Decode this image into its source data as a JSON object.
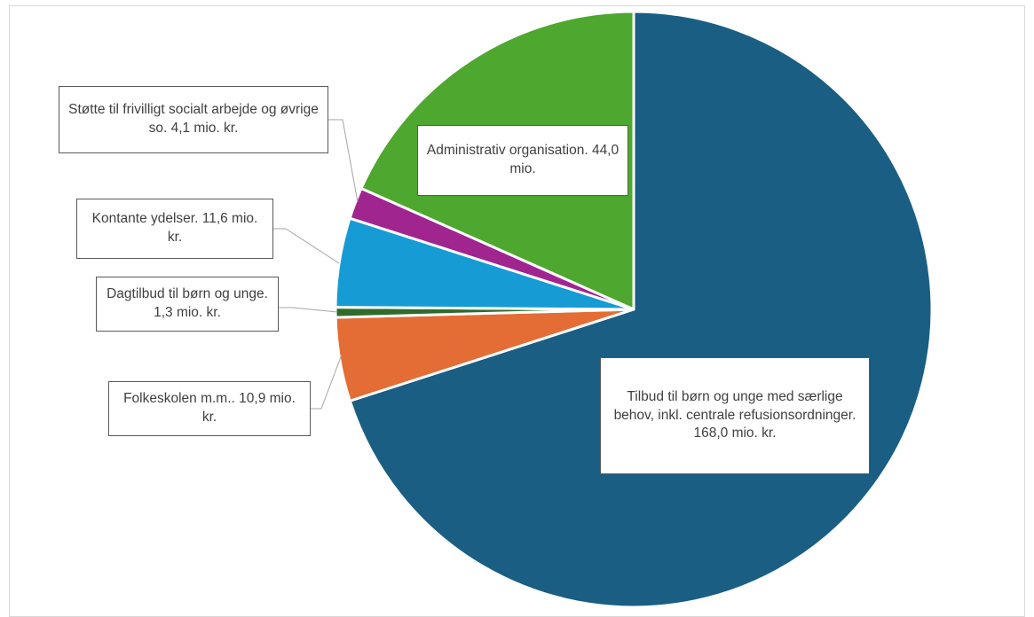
{
  "chart_data": {
    "type": "pie",
    "slices": [
      {
        "label": "Tilbud til børn og unge med særlige behov, inkl. centrale refusionsordninger. 168,0 mio. kr.",
        "value": 168.0,
        "color": "#1a5e83"
      },
      {
        "label": "Folkeskolen m.m.. 10,9 mio. kr.",
        "value": 10.9,
        "color": "#e46c35"
      },
      {
        "label": "Dagtilbud til børn og unge. 1,3 mio. kr.",
        "value": 1.3,
        "color": "#2f6b2a"
      },
      {
        "label": "Kontante ydelser. 11,6 mio. kr.",
        "value": 11.6,
        "color": "#169bd5"
      },
      {
        "label": "Støtte til frivilligt socialt arbejde og øvrige so. 4,1 mio. kr.",
        "value": 4.1,
        "color": "#a0258f"
      },
      {
        "label": "Administrativ organisation. 44,0 mio.",
        "value": 44.0,
        "color": "#4ea72e"
      }
    ]
  },
  "labels": {
    "tilbud": "Tilbud til børn og unge med særlige behov, inkl. centrale refusionsordninger. 168,0 mio. kr.",
    "folkeskolen": "Folkeskolen m.m.. 10,9 mio. kr.",
    "dagtilbud": "Dagtilbud til børn og unge. 1,3 mio. kr.",
    "kontante": "Kontante ydelser. 11,6 mio. kr.",
    "stotte": "Støtte til frivilligt socialt arbejde og øvrige so. 4,1 mio. kr.",
    "administrativ": "Administrativ organisation. 44,0 mio."
  }
}
